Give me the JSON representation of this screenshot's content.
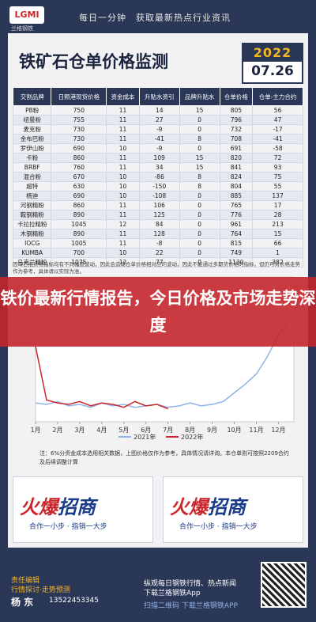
{
  "header": {
    "logo": "LGMI",
    "brand": "兰格钢铁",
    "slogan": "每日一分钟　获取最新热点行业资讯"
  },
  "title": "铁矿石仓单价格监测",
  "date_year": "2022",
  "date_day": "07.26",
  "table": {
    "columns": [
      "交割品牌",
      "日照港现货价格",
      "资金成本",
      "升贴水资引",
      "品牌升贴水",
      "仓单价格",
      "仓单-主力合约"
    ],
    "rows": [
      [
        "PB粉",
        750,
        11,
        14,
        15,
        805,
        56
      ],
      [
        "纽曼粉",
        755,
        11,
        27,
        0,
        796,
        47
      ],
      [
        "麦克粉",
        730,
        11,
        -9,
        0,
        732,
        -17
      ],
      [
        "金布巴粉",
        730,
        11,
        -41,
        8,
        708,
        -41
      ],
      [
        "罗伊山粉",
        690,
        10,
        -9,
        0,
        691,
        -58
      ],
      [
        "卡粉",
        860,
        11,
        109,
        15,
        820,
        72
      ],
      [
        "BRBF",
        760,
        11,
        34,
        15,
        841,
        93
      ],
      [
        "混合粉",
        670,
        10,
        -86,
        8,
        824,
        75
      ],
      [
        "超特",
        630,
        10,
        -150,
        8,
        804,
        55
      ],
      [
        "杨迪",
        690,
        10,
        -108,
        0,
        885,
        137
      ],
      [
        "河钢精粉",
        860,
        11,
        106,
        0,
        765,
        17
      ],
      [
        "鞍钢精粉",
        890,
        11,
        125,
        0,
        776,
        28
      ],
      [
        "卡拉拉精粉",
        1045,
        12,
        84,
        0,
        961,
        213
      ],
      [
        "木钢精粉",
        890,
        11,
        128,
        0,
        764,
        15
      ],
      [
        "IOCG",
        1005,
        11,
        -8,
        0,
        815,
        66
      ],
      [
        "KUMBA",
        700,
        10,
        22,
        0,
        749,
        1
      ],
      [
        "乌克兰精粉",
        1075,
        12,
        77,
        0,
        1130,
        382
      ]
    ],
    "note": "因每日批货物指标均有不同幅度波动，因此会造成仓单价格相对应的波动，因此不能通过多期货价格的指标，但仍可对价格走势作为参考，具体请以实际为准。"
  },
  "banner": "铁价最新行情报告，今日价格及市场走势深度",
  "chart_data": {
    "type": "line",
    "x": [
      1,
      1.5,
      2,
      2.5,
      3,
      3.5,
      4,
      4.5,
      5,
      5.5,
      6,
      6.5,
      7,
      7.5,
      8,
      8.5,
      9,
      9.5,
      10,
      10.5,
      11,
      11.5,
      12,
      12.5
    ],
    "xlim": [
      1,
      12.7
    ],
    "ylim": [
      0,
      1000
    ],
    "xticks": [
      {
        "value": 1,
        "label": "1月"
      },
      {
        "value": 2,
        "label": "2月"
      },
      {
        "value": 3,
        "label": "3月"
      },
      {
        "value": 4,
        "label": "4月"
      },
      {
        "value": 5,
        "label": "5月"
      },
      {
        "value": 6,
        "label": "6月"
      },
      {
        "value": 7,
        "label": "7月"
      },
      {
        "value": 8,
        "label": "8月"
      },
      {
        "value": 9,
        "label": "9月"
      },
      {
        "value": 10,
        "label": "10月"
      },
      {
        "value": 11,
        "label": "11月"
      },
      {
        "value": 12,
        "label": "12月"
      }
    ],
    "series": [
      {
        "name": "2021年",
        "color": "#8fb3e6",
        "values": [
          130,
          120,
          140,
          110,
          120,
          100,
          130,
          110,
          120,
          100,
          110,
          120,
          100,
          110,
          130,
          110,
          120,
          140,
          200,
          260,
          330,
          450,
          600,
          700
        ]
      },
      {
        "name": "2022年",
        "color": "#c9262c",
        "values": [
          520,
          150,
          130,
          120,
          140,
          110,
          130,
          120,
          100,
          140,
          110,
          120,
          90,
          null,
          null,
          null,
          null,
          null,
          null,
          null,
          null,
          null,
          null,
          null
        ]
      }
    ],
    "note": "注：6%分资金成本选用相关数据，上图价格仅作为参考，具体情况请详询。本仓单则可按照2209合约及后续调整计算"
  },
  "ads": [
    {
      "title_a": "火爆",
      "title_b": "招商",
      "tagline": "合作一小步 · 指销一大步"
    },
    {
      "title_a": "火爆",
      "title_b": "招商",
      "tagline": "合作一小步 · 指销一大步"
    }
  ],
  "footer": {
    "editor_label": "责任编辑",
    "editor_role": "行情探讨·走势预测",
    "editor_name": "杨 东",
    "phone": "13522453345",
    "app_line1": "纵观每日钢铁行情、热点新闻",
    "app_line2": "下载兰格钢铁App",
    "app_line3": "扫描二维码 下载兰格钢铁APP"
  }
}
